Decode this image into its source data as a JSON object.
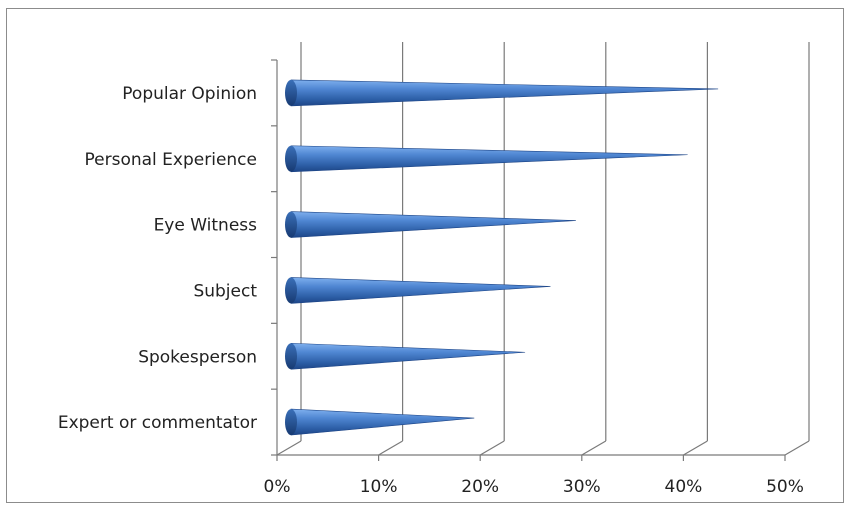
{
  "chart_data": {
    "type": "bar",
    "orientation": "horizontal",
    "style": "3d-cone",
    "categories": [
      "Popular Opinion",
      "Personal Experience",
      "Eye Witness",
      "Subject",
      "Spokesperson",
      "Expert or commentator"
    ],
    "values": [
      0.42,
      0.39,
      0.28,
      0.255,
      0.23,
      0.18
    ],
    "xlim": [
      0,
      0.5
    ],
    "x_ticks": [
      0,
      0.1,
      0.2,
      0.3,
      0.4,
      0.5
    ],
    "x_tick_labels": [
      "0%",
      "10%",
      "20%",
      "30%",
      "40%",
      "50%"
    ],
    "grid": true,
    "legend": "none",
    "bar_color": "#4a7fc8",
    "bar_dark_color": "#1f4f91"
  }
}
